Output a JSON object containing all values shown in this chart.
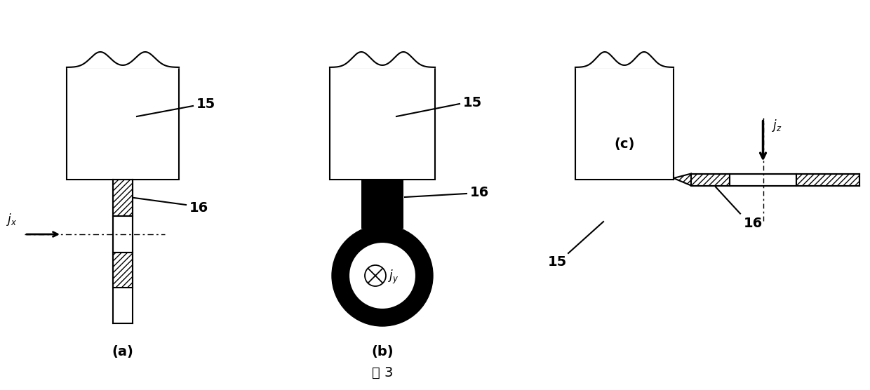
{
  "bg_color": "#ffffff",
  "line_color": "#000000",
  "caption": "图 3",
  "fig_a_label": "(a)",
  "fig_b_label": "(b)",
  "fig_c_label": "(c)",
  "label_15": "15",
  "label_16": "16",
  "jx_label": "j_x",
  "jy_label": "j_y",
  "jz_label": "j_z"
}
